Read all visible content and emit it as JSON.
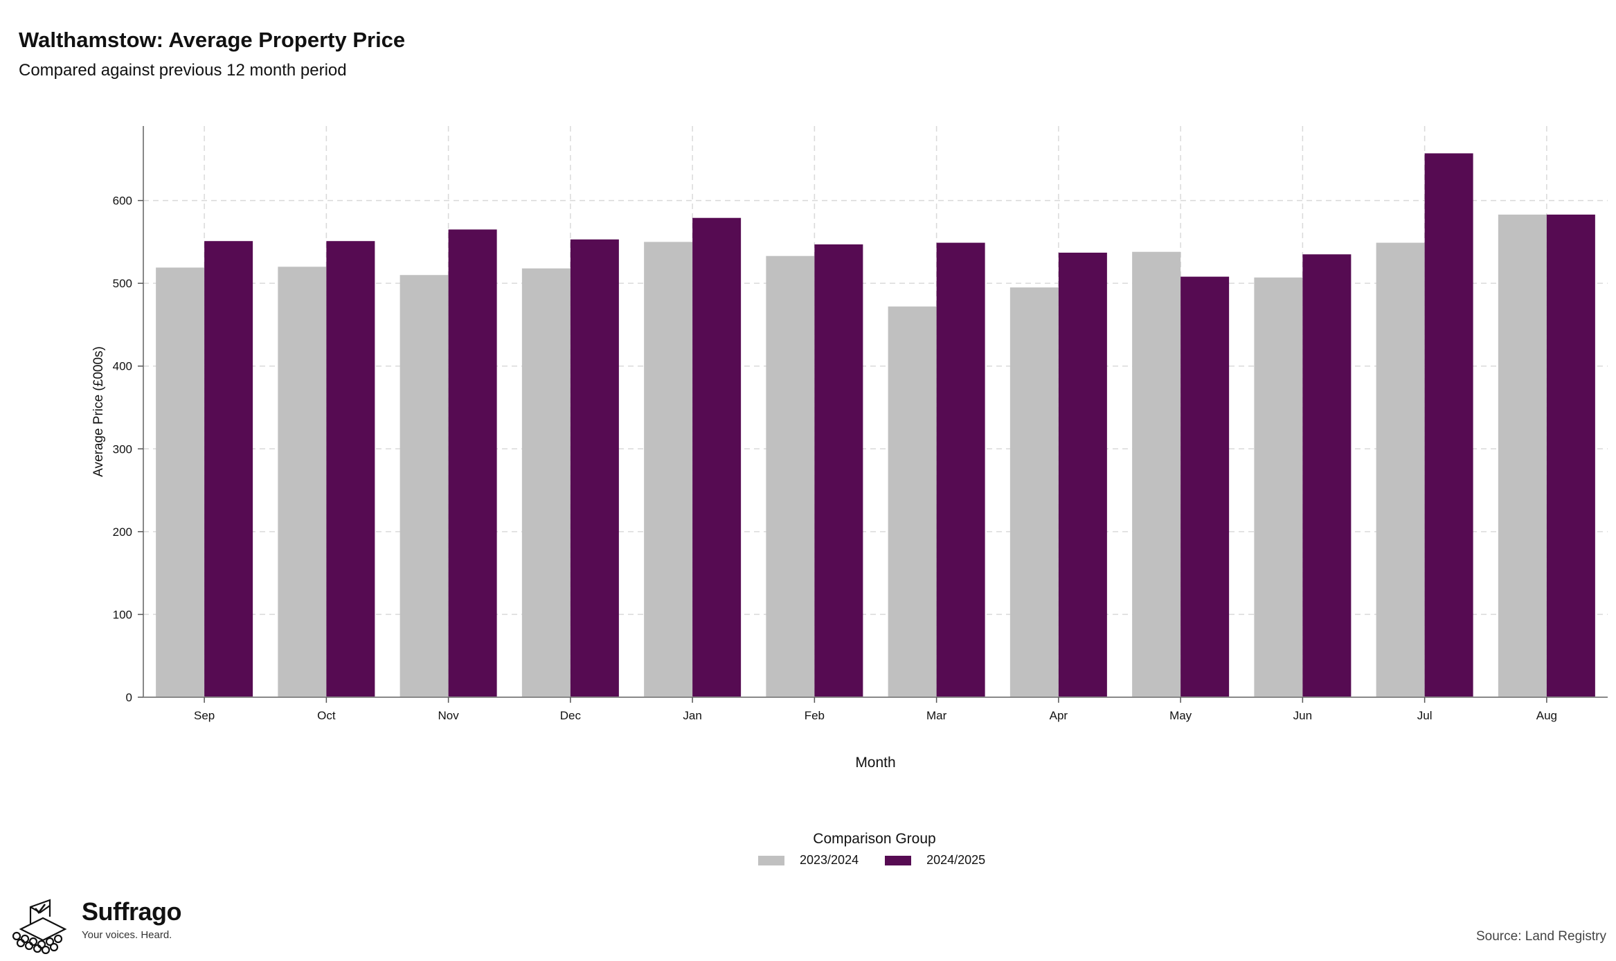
{
  "header": {
    "title": "Walthamstow: Average Property Price",
    "subtitle": "Compared against previous 12 month period"
  },
  "chart_data": {
    "type": "bar",
    "categories": [
      "Sep",
      "Oct",
      "Nov",
      "Dec",
      "Jan",
      "Feb",
      "Mar",
      "Apr",
      "May",
      "Jun",
      "Jul",
      "Aug"
    ],
    "series": [
      {
        "name": "2023/2024",
        "color": "#c0c0c0",
        "values": [
          519,
          520,
          510,
          518,
          550,
          533,
          472,
          495,
          538,
          507,
          549,
          583
        ]
      },
      {
        "name": "2024/2025",
        "color": "#560b52",
        "values": [
          551,
          551,
          565,
          553,
          579,
          547,
          549,
          537,
          508,
          535,
          657,
          583
        ]
      }
    ],
    "xlabel": "Month",
    "ylabel": "Average Price (£000s)",
    "ylim": [
      0,
      690
    ],
    "yticks": [
      0,
      100,
      200,
      300,
      400,
      500,
      600
    ],
    "grid": true,
    "legend_title": "Comparison Group",
    "legend_position": "bottom"
  },
  "branding": {
    "name": "Suffrago",
    "tagline": "Your voices. Heard.",
    "logo_icon": "ballot-box-icon"
  },
  "footer": {
    "source": "Source: Land Registry"
  }
}
